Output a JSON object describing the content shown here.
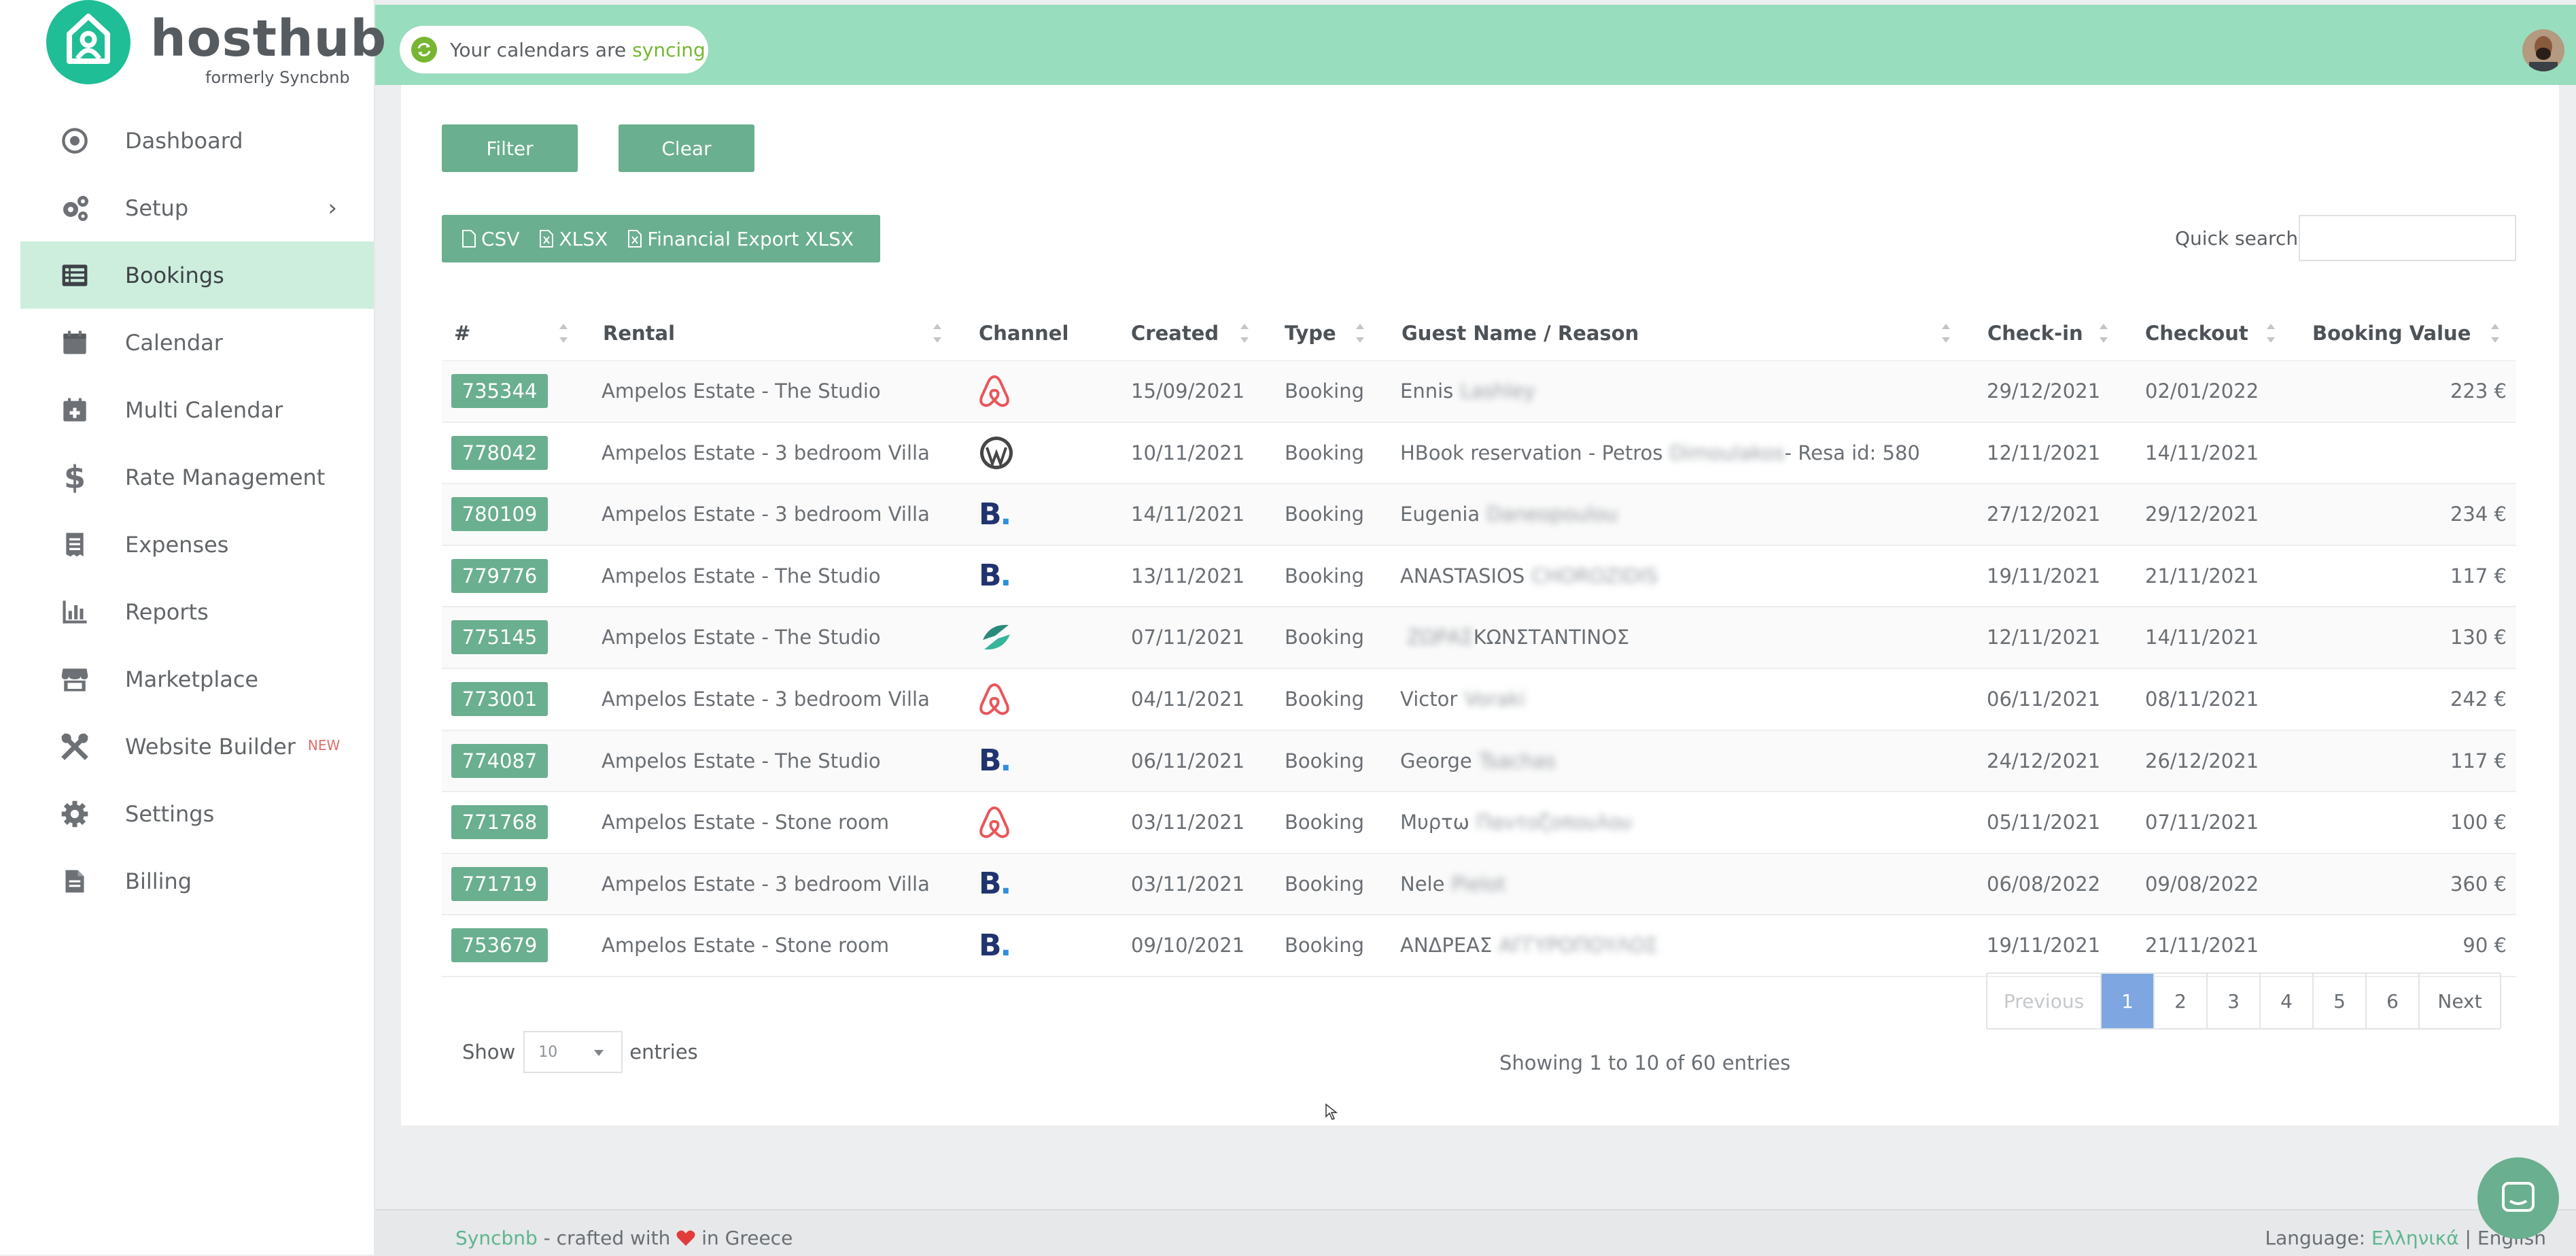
{
  "brand": {
    "name": "hosthub",
    "subtitle": "formerly Syncbnb"
  },
  "sync": {
    "text": "Your calendars are",
    "state": "syncing"
  },
  "sidebar": {
    "items": [
      {
        "label": "Dashboard",
        "icon": "dashboard-icon"
      },
      {
        "label": "Setup",
        "icon": "cogs-icon",
        "has_submenu": true
      },
      {
        "label": "Bookings",
        "icon": "list-icon",
        "active": true
      },
      {
        "label": "Calendar",
        "icon": "calendar-icon"
      },
      {
        "label": "Multi Calendar",
        "icon": "calendar-plus-icon"
      },
      {
        "label": "Rate Management",
        "icon": "dollar-icon"
      },
      {
        "label": "Expenses",
        "icon": "receipt-icon"
      },
      {
        "label": "Reports",
        "icon": "bar-chart-icon"
      },
      {
        "label": "Marketplace",
        "icon": "store-icon"
      },
      {
        "label": "Website Builder",
        "icon": "tools-icon",
        "badge": "NEW"
      },
      {
        "label": "Settings",
        "icon": "gear-icon"
      },
      {
        "label": "Billing",
        "icon": "document-icon"
      }
    ]
  },
  "toolbar": {
    "filter_label": "Filter",
    "clear_label": "Clear",
    "csv_label": "CSV",
    "xlsx_label": "XLSX",
    "financial_label": "Financial Export XLSX",
    "quick_search_label": "Quick search:"
  },
  "table": {
    "headers": {
      "id": "#",
      "rental": "Rental",
      "channel": "Channel",
      "created": "Created",
      "type": "Type",
      "guest": "Guest Name / Reason",
      "checkin": "Check-in",
      "checkout": "Checkout",
      "value": "Booking Value"
    },
    "rows": [
      {
        "id": "735344",
        "rental": "Ampelos Estate - The Studio",
        "channel": "airbnb-icon",
        "created": "15/09/2021",
        "type": "Booking",
        "guest": "Ennis",
        "guest_hidden": "Lashley",
        "guest_suffix": "",
        "checkin": "29/12/2021",
        "checkout": "02/01/2022",
        "value": "223 €"
      },
      {
        "id": "778042",
        "rental": "Ampelos Estate - 3 bedroom Villa",
        "channel": "wordpress-icon",
        "created": "10/11/2021",
        "type": "Booking",
        "guest": "HBook reservation - Petros",
        "guest_hidden": "Dimoulakos",
        "guest_suffix": " - Resa id: 580",
        "checkin": "12/11/2021",
        "checkout": "14/11/2021",
        "value": ""
      },
      {
        "id": "780109",
        "rental": "Ampelos Estate - 3 bedroom Villa",
        "channel": "booking-com-icon",
        "created": "14/11/2021",
        "type": "Booking",
        "guest": "Eugenia",
        "guest_hidden": "Daneopoulou",
        "guest_suffix": "",
        "checkin": "27/12/2021",
        "checkout": "29/12/2021",
        "value": "234 €"
      },
      {
        "id": "779776",
        "rental": "Ampelos Estate - The Studio",
        "channel": "booking-com-icon",
        "created": "13/11/2021",
        "type": "Booking",
        "guest": "ANASTASIOS",
        "guest_hidden": "CHOROZIDIS",
        "guest_suffix": "",
        "checkin": "19/11/2021",
        "checkout": "21/11/2021",
        "value": "117 €"
      },
      {
        "id": "775145",
        "rental": "Ampelos Estate - The Studio",
        "channel": "expedia-icon",
        "created": "07/11/2021",
        "type": "Booking",
        "guest": "",
        "guest_hidden": "ΖΩΡΑΣ",
        "guest_suffix": " ΚΩΝΣΤΑΝΤΙΝΟΣ",
        "checkin": "12/11/2021",
        "checkout": "14/11/2021",
        "value": "130 €"
      },
      {
        "id": "773001",
        "rental": "Ampelos Estate - 3 bedroom Villa",
        "channel": "airbnb-icon",
        "created": "04/11/2021",
        "type": "Booking",
        "guest": "Victor",
        "guest_hidden": "Voraki",
        "guest_suffix": "",
        "checkin": "06/11/2021",
        "checkout": "08/11/2021",
        "value": "242 €"
      },
      {
        "id": "774087",
        "rental": "Ampelos Estate - The Studio",
        "channel": "booking-com-icon",
        "created": "06/11/2021",
        "type": "Booking",
        "guest": "George",
        "guest_hidden": "Tsachas",
        "guest_suffix": "",
        "checkin": "24/12/2021",
        "checkout": "26/12/2021",
        "value": "117 €"
      },
      {
        "id": "771768",
        "rental": "Ampelos Estate - Stone room",
        "channel": "airbnb-icon",
        "created": "03/11/2021",
        "type": "Booking",
        "guest": "Μυρτω",
        "guest_hidden": "Παντοζοπουλου",
        "guest_suffix": "",
        "checkin": "05/11/2021",
        "checkout": "07/11/2021",
        "value": "100 €"
      },
      {
        "id": "771719",
        "rental": "Ampelos Estate - 3 bedroom Villa",
        "channel": "booking-com-icon",
        "created": "03/11/2021",
        "type": "Booking",
        "guest": "Nele",
        "guest_hidden": "Pielot",
        "guest_suffix": "",
        "checkin": "06/08/2022",
        "checkout": "09/08/2022",
        "value": "360 €"
      },
      {
        "id": "753679",
        "rental": "Ampelos Estate - Stone room",
        "channel": "booking-com-icon",
        "created": "09/10/2021",
        "type": "Booking",
        "guest": "ΑΝΔΡΕΑΣ",
        "guest_hidden": "ΑΓΓΥΡΟΠΟΥΛΟΣ",
        "guest_suffix": "",
        "checkin": "19/11/2021",
        "checkout": "21/11/2021",
        "value": "90 €"
      }
    ]
  },
  "pagination": {
    "previous": "Previous",
    "pages": [
      "1",
      "2",
      "3",
      "4",
      "5",
      "6"
    ],
    "current": "1",
    "next": "Next"
  },
  "entries": {
    "show_label": "Show",
    "page_size": "10",
    "entries_label": "entries",
    "summary": "Showing 1 to 10 of 60 entries"
  },
  "footer": {
    "brand_link": "Syncbnb",
    "crafted_text": " - crafted with ",
    "crafted_suffix": " in Greece",
    "language_label": "Language: ",
    "lang_greek": "Ελληνικά",
    "separator": " | ",
    "lang_english": "English"
  },
  "colors": {
    "topbar": "#98ddbd",
    "accent_green": "#6aaf8f",
    "brand_teal": "#1fbe96",
    "active_nav": "#cdeedd",
    "pager_active": "#7ea6e0",
    "sync_state": "#77b632"
  }
}
